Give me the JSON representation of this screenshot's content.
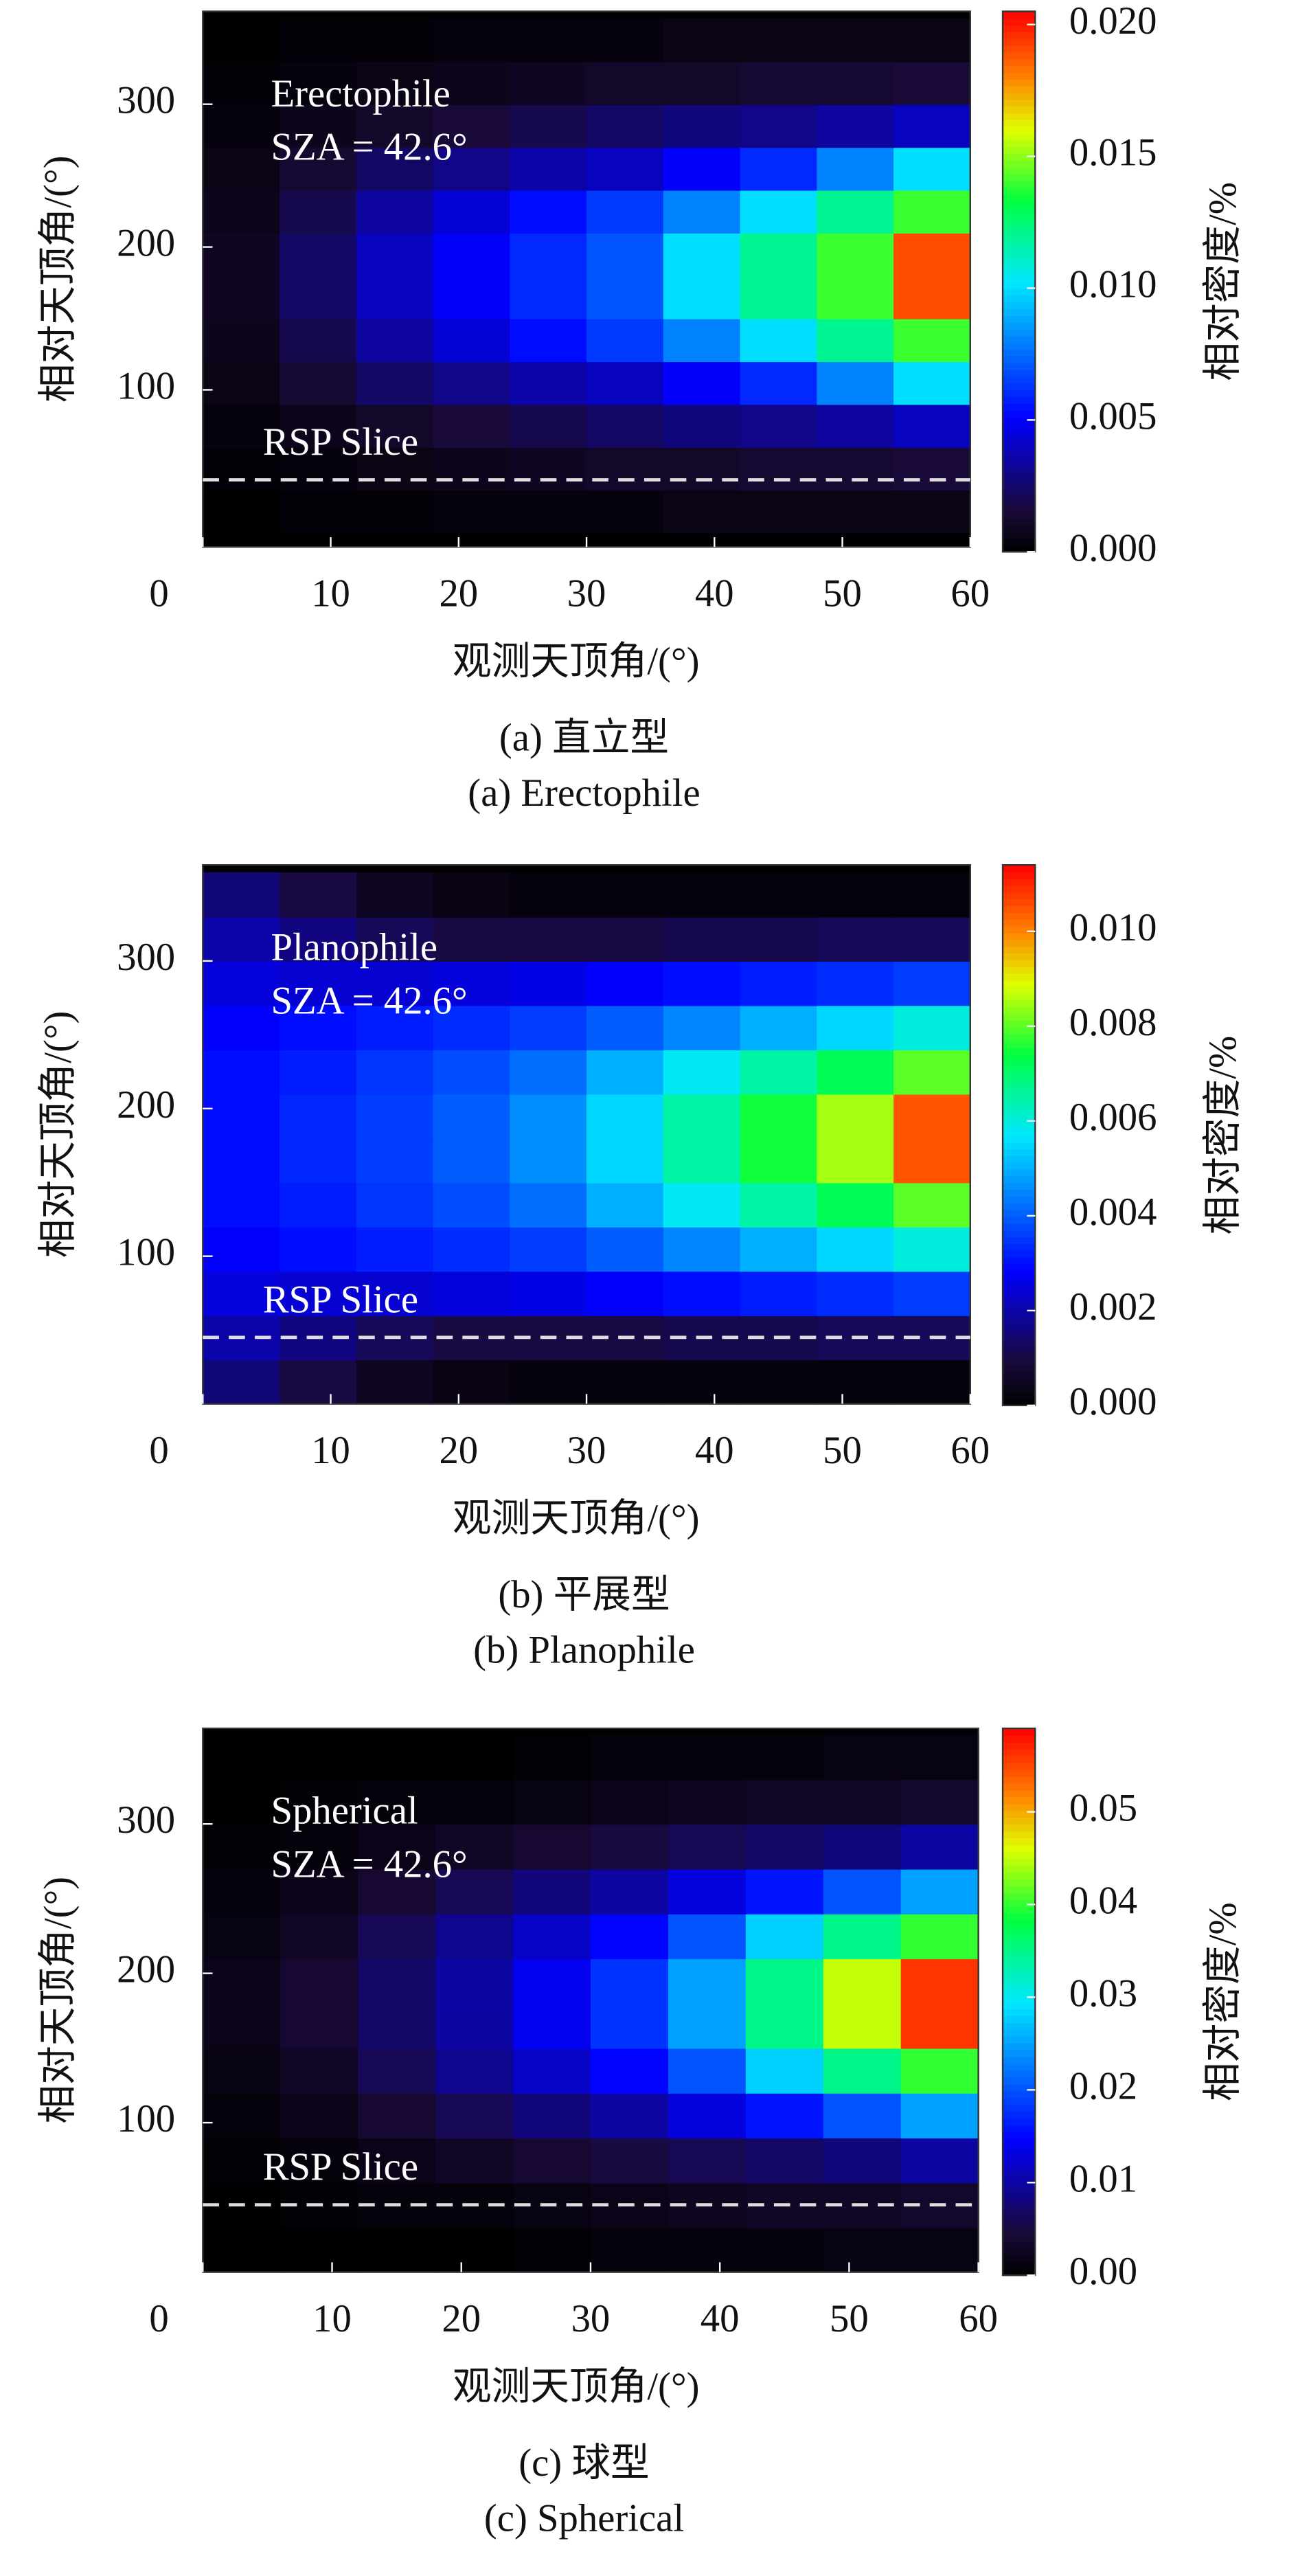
{
  "chart_data": [
    {
      "type": "heatmap",
      "colormap": "jet",
      "annotation": [
        "Erectophile",
        "SZA = 42.6°"
      ],
      "reference_line": {
        "label": "RSP Slice",
        "value": 37
      },
      "x_label": "观测天顶角/(°)",
      "y_label": "相对天顶角/(°)",
      "colorbar_label": "相对密度/%",
      "caption": [
        "(a) 直立型",
        "(a) Erectophile"
      ],
      "xlim": [
        0,
        60
      ],
      "xticks": [
        0,
        10,
        20,
        30,
        40,
        50,
        60
      ],
      "ylim": [
        -10,
        365
      ],
      "yticks": [
        100,
        200,
        300
      ],
      "zlim": [
        0,
        0.0205
      ],
      "zticks": [
        {
          "value": 0,
          "label": "0.000"
        },
        {
          "value": 0.005,
          "label": "0.005"
        },
        {
          "value": 0.01,
          "label": "0.010"
        },
        {
          "value": 0.015,
          "label": "0.015"
        },
        {
          "value": 0.02,
          "label": "0.020"
        }
      ],
      "x": [
        3,
        9,
        15,
        21,
        27,
        33,
        39,
        45,
        51,
        57
      ],
      "y": [
        15,
        45,
        75,
        105,
        135,
        165,
        195,
        225,
        255,
        285,
        315,
        345
      ],
      "z": [
        [
          0,
          0.0002,
          0.0002,
          0.0004,
          0.0004,
          0.0004,
          0.0006,
          0.0006,
          0.0006,
          0.0006
        ],
        [
          0.0002,
          0.0004,
          0.0006,
          0.0008,
          0.001,
          0.0012,
          0.0012,
          0.0014,
          0.0014,
          0.0016
        ],
        [
          0.0004,
          0.0008,
          0.0012,
          0.0016,
          0.002,
          0.0024,
          0.0028,
          0.003,
          0.0034,
          0.004
        ],
        [
          0.0006,
          0.0014,
          0.0024,
          0.003,
          0.0036,
          0.004,
          0.005,
          0.006,
          0.008,
          0.01
        ],
        [
          0.0008,
          0.002,
          0.0034,
          0.0044,
          0.0054,
          0.0064,
          0.008,
          0.01,
          0.012,
          0.014
        ],
        [
          0.001,
          0.0024,
          0.004,
          0.005,
          0.006,
          0.007,
          0.01,
          0.012,
          0.014,
          0.019
        ],
        [
          0.001,
          0.0024,
          0.004,
          0.005,
          0.006,
          0.007,
          0.01,
          0.012,
          0.014,
          0.019
        ],
        [
          0.0008,
          0.002,
          0.0034,
          0.0044,
          0.0054,
          0.0064,
          0.008,
          0.01,
          0.012,
          0.014
        ],
        [
          0.0006,
          0.0014,
          0.0024,
          0.003,
          0.0036,
          0.004,
          0.005,
          0.006,
          0.008,
          0.01
        ],
        [
          0.0004,
          0.0008,
          0.0012,
          0.0016,
          0.002,
          0.0024,
          0.0028,
          0.003,
          0.0034,
          0.004
        ],
        [
          0.0002,
          0.0004,
          0.0006,
          0.0008,
          0.001,
          0.0012,
          0.0012,
          0.0014,
          0.0014,
          0.0016
        ],
        [
          0,
          0.0002,
          0.0002,
          0.0004,
          0.0004,
          0.0004,
          0.0006,
          0.0006,
          0.0006,
          0.0006
        ]
      ]
    },
    {
      "type": "heatmap",
      "colormap": "jet",
      "annotation": [
        "Planophile",
        "SZA = 42.6°"
      ],
      "reference_line": {
        "label": "RSP Slice",
        "value": 45
      },
      "x_label": "观测天顶角/(°)",
      "y_label": "相对天顶角/(°)",
      "colorbar_label": "相对密度/%",
      "caption": [
        "(b) 平展型",
        "(b) Planophile"
      ],
      "xlim": [
        0,
        60
      ],
      "xticks": [
        0,
        10,
        20,
        30,
        40,
        50,
        60
      ],
      "ylim": [
        0,
        365
      ],
      "yticks": [
        100,
        200,
        300
      ],
      "zlim": [
        0,
        0.0114
      ],
      "zticks": [
        {
          "value": 0,
          "label": "0.000"
        },
        {
          "value": 0.002,
          "label": "0.002"
        },
        {
          "value": 0.004,
          "label": "0.004"
        },
        {
          "value": 0.006,
          "label": "0.006"
        },
        {
          "value": 0.008,
          "label": "0.008"
        },
        {
          "value": 0.01,
          "label": "0.010"
        }
      ],
      "x": [
        3,
        9,
        15,
        21,
        27,
        33,
        39,
        45,
        51,
        57
      ],
      "y": [
        15,
        45,
        75,
        105,
        135,
        165,
        195,
        225,
        255,
        285,
        315,
        345
      ],
      "z": [
        [
          0.0015,
          0.001,
          0.0005,
          0.0003,
          0.0002,
          0.0002,
          0.0002,
          0.0002,
          0.0002,
          0.0002
        ],
        [
          0.002,
          0.0016,
          0.0012,
          0.001,
          0.001,
          0.001,
          0.0011,
          0.0011,
          0.0012,
          0.0012
        ],
        [
          0.0025,
          0.0024,
          0.0024,
          0.0025,
          0.0026,
          0.0028,
          0.003,
          0.0032,
          0.0034,
          0.0036
        ],
        [
          0.0028,
          0.003,
          0.0032,
          0.0034,
          0.0036,
          0.004,
          0.0045,
          0.005,
          0.0055,
          0.006
        ],
        [
          0.003,
          0.0032,
          0.0035,
          0.0038,
          0.0042,
          0.005,
          0.0058,
          0.0065,
          0.0072,
          0.008
        ],
        [
          0.003,
          0.0033,
          0.0036,
          0.004,
          0.0046,
          0.0055,
          0.0065,
          0.0075,
          0.0085,
          0.0105
        ],
        [
          0.003,
          0.0033,
          0.0036,
          0.004,
          0.0046,
          0.0055,
          0.0065,
          0.0075,
          0.0085,
          0.0105
        ],
        [
          0.003,
          0.0032,
          0.0035,
          0.0038,
          0.0042,
          0.005,
          0.0058,
          0.0065,
          0.0072,
          0.008
        ],
        [
          0.0028,
          0.003,
          0.0032,
          0.0034,
          0.0036,
          0.004,
          0.0045,
          0.005,
          0.0055,
          0.006
        ],
        [
          0.0025,
          0.0024,
          0.0024,
          0.0025,
          0.0026,
          0.0028,
          0.003,
          0.0032,
          0.0034,
          0.0036
        ],
        [
          0.002,
          0.0016,
          0.0012,
          0.001,
          0.001,
          0.001,
          0.0011,
          0.0011,
          0.0012,
          0.0012
        ],
        [
          0.0015,
          0.001,
          0.0005,
          0.0003,
          0.0002,
          0.0002,
          0.0002,
          0.0002,
          0.0002,
          0.0002
        ]
      ]
    },
    {
      "type": "heatmap",
      "colormap": "jet",
      "annotation": [
        "Spherical",
        "SZA = 42.6°"
      ],
      "reference_line": {
        "label": "RSP Slice",
        "value": 45
      },
      "x_label": "观测天顶角/(°)",
      "y_label": "相对天顶角/(°)",
      "colorbar_label": "相对密度/%",
      "caption": [
        "(c) 球型",
        "(c) Spherical"
      ],
      "xlim": [
        0,
        60
      ],
      "xticks": [
        0,
        10,
        20,
        30,
        40,
        50,
        60
      ],
      "ylim": [
        0,
        364
      ],
      "yticks": [
        100,
        200,
        300
      ],
      "zlim": [
        0,
        0.059
      ],
      "zticks": [
        {
          "value": 0,
          "label": "0.00"
        },
        {
          "value": 0.01,
          "label": "0.01"
        },
        {
          "value": 0.02,
          "label": "0.02"
        },
        {
          "value": 0.03,
          "label": "0.03"
        },
        {
          "value": 0.04,
          "label": "0.04"
        },
        {
          "value": 0.05,
          "label": "0.05"
        }
      ],
      "x": [
        3,
        9,
        15,
        21,
        27,
        33,
        39,
        45,
        51,
        57
      ],
      "y": [
        15,
        45,
        75,
        105,
        135,
        165,
        195,
        225,
        255,
        285,
        315,
        345
      ],
      "z": [
        [
          0,
          0,
          0,
          0,
          0.0005,
          0.001,
          0.001,
          0.001,
          0.0015,
          0.0015
        ],
        [
          0,
          0.0005,
          0.001,
          0.001,
          0.0015,
          0.002,
          0.0025,
          0.003,
          0.003,
          0.0035
        ],
        [
          0.0005,
          0.001,
          0.002,
          0.003,
          0.004,
          0.005,
          0.006,
          0.007,
          0.008,
          0.01
        ],
        [
          0.001,
          0.002,
          0.004,
          0.006,
          0.008,
          0.01,
          0.013,
          0.016,
          0.02,
          0.025
        ],
        [
          0.0015,
          0.003,
          0.006,
          0.009,
          0.012,
          0.015,
          0.02,
          0.028,
          0.035,
          0.04
        ],
        [
          0.002,
          0.004,
          0.007,
          0.01,
          0.014,
          0.018,
          0.025,
          0.035,
          0.045,
          0.056
        ],
        [
          0.002,
          0.004,
          0.007,
          0.01,
          0.014,
          0.018,
          0.025,
          0.035,
          0.045,
          0.056
        ],
        [
          0.0015,
          0.003,
          0.006,
          0.009,
          0.012,
          0.015,
          0.02,
          0.028,
          0.035,
          0.04
        ],
        [
          0.001,
          0.002,
          0.004,
          0.006,
          0.008,
          0.01,
          0.013,
          0.016,
          0.02,
          0.025
        ],
        [
          0.0005,
          0.001,
          0.002,
          0.003,
          0.004,
          0.005,
          0.006,
          0.007,
          0.008,
          0.01
        ],
        [
          0,
          0.0005,
          0.001,
          0.001,
          0.0015,
          0.002,
          0.0025,
          0.003,
          0.003,
          0.0035
        ],
        [
          0,
          0,
          0,
          0,
          0.0005,
          0.001,
          0.001,
          0.001,
          0.0015,
          0.0015
        ]
      ]
    }
  ]
}
